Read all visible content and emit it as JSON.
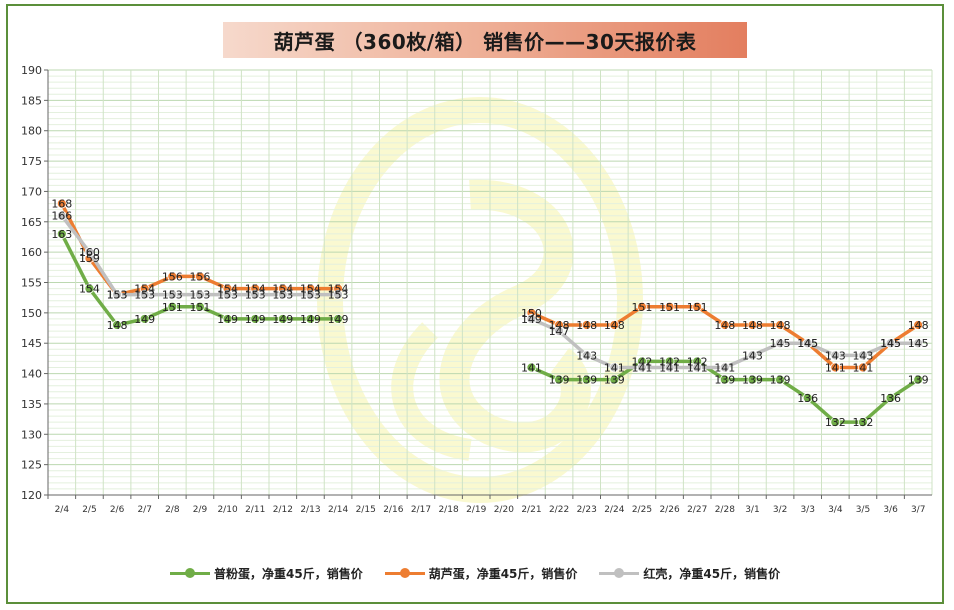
{
  "chart_data": {
    "type": "line",
    "title": "葫芦蛋 （360枚/箱） 销售价——30天报价表",
    "categories": [
      "2/4",
      "2/5",
      "2/6",
      "2/7",
      "2/8",
      "2/9",
      "2/10",
      "2/11",
      "2/12",
      "2/13",
      "2/14",
      "2/15",
      "2/16",
      "2/17",
      "2/18",
      "2/19",
      "2/20",
      "2/21",
      "2/22",
      "2/23",
      "2/24",
      "2/25",
      "2/26",
      "2/27",
      "2/28",
      "3/1",
      "3/2",
      "3/3",
      "3/4",
      "3/5",
      "3/6",
      "3/7"
    ],
    "ylim": [
      120,
      190
    ],
    "yticks": [
      120,
      125,
      130,
      135,
      140,
      145,
      150,
      155,
      160,
      165,
      170,
      175,
      180,
      185,
      190
    ],
    "grid": true,
    "legend_position": "bottom",
    "series": [
      {
        "name": "普粉蛋，净重45斤，销售价",
        "color": "#70ad47",
        "values": [
          163,
          154,
          148,
          149,
          151,
          151,
          149,
          149,
          149,
          149,
          149,
          null,
          null,
          null,
          null,
          null,
          null,
          141,
          139,
          139,
          139,
          142,
          142,
          142,
          139,
          139,
          139,
          136,
          132,
          132,
          136,
          139
        ]
      },
      {
        "name": "葫芦蛋，净重45斤，销售价",
        "color": "#ed7d31",
        "values": [
          168,
          159,
          153,
          154,
          156,
          156,
          154,
          154,
          154,
          154,
          154,
          null,
          null,
          null,
          null,
          null,
          null,
          150,
          148,
          148,
          148,
          151,
          151,
          151,
          148,
          148,
          148,
          145,
          141,
          141,
          145,
          148
        ]
      },
      {
        "name": "红壳，净重45斤，销售价",
        "color": "#c0c0c0",
        "values": [
          166,
          160,
          153,
          153,
          153,
          153,
          153,
          153,
          153,
          153,
          153,
          null,
          null,
          null,
          null,
          null,
          null,
          149,
          147,
          143,
          141,
          141,
          141,
          141,
          141,
          143,
          145,
          145,
          143,
          143,
          145,
          145
        ]
      }
    ]
  }
}
